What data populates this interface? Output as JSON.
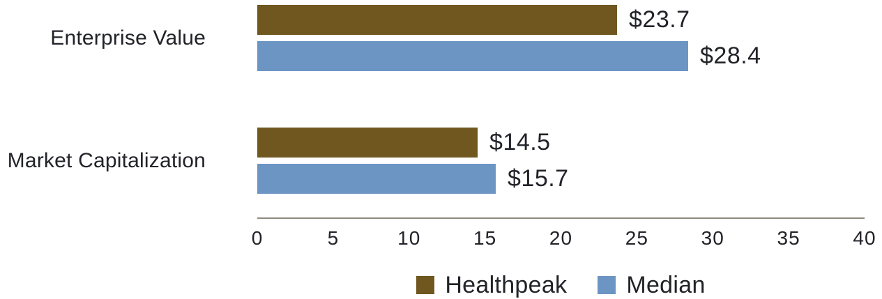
{
  "chart_data": {
    "type": "bar",
    "orientation": "horizontal",
    "categories": [
      "Enterprise Value",
      "Market Capitalization"
    ],
    "series": [
      {
        "name": "Healthpeak",
        "color": "#6F571F",
        "values": [
          23.7,
          14.5
        ],
        "value_labels": [
          "$23.7",
          "$14.5"
        ]
      },
      {
        "name": "Median",
        "color": "#6C95C4",
        "values": [
          28.4,
          15.7
        ],
        "value_labels": [
          "$28.4",
          "$15.7"
        ]
      }
    ],
    "value_prefix": "$",
    "xlim": [
      0,
      40
    ],
    "xticks": [
      "0",
      "5",
      "10",
      "15",
      "20",
      "25",
      "30",
      "35",
      "40"
    ],
    "grid": false,
    "legend_position": "bottom",
    "colors": {
      "axis_line": "#8F8A80",
      "text": "#222329",
      "background": "#FFFFFF"
    }
  }
}
